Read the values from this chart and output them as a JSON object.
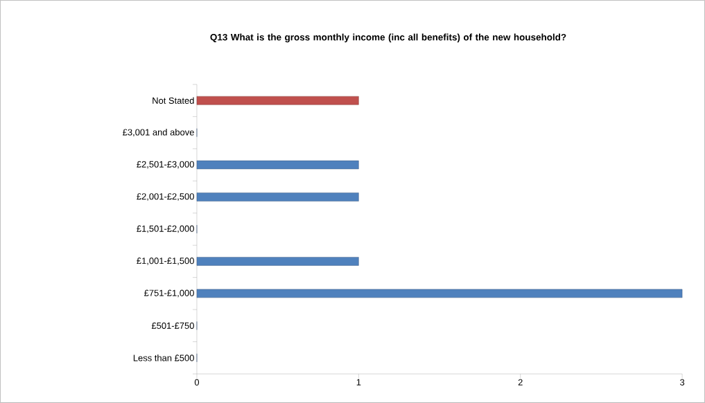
{
  "chart_data": {
    "type": "bar",
    "orientation": "horizontal",
    "title": "Q13 What is the gross monthly income (inc all benefits) of the new household?",
    "categories": [
      "Not Stated",
      "£3,001 and above",
      "£2,501-£3,000",
      "£2,001-£2,500",
      "£1,501-£2,000",
      "£1,001-£1,500",
      "£751-£1,000",
      "£501-£750",
      "Less than £500"
    ],
    "values": [
      1,
      0,
      1,
      1,
      0,
      1,
      3,
      0,
      0
    ],
    "colors": [
      "#c0504d",
      "#4f81bd",
      "#4f81bd",
      "#4f81bd",
      "#4f81bd",
      "#4f81bd",
      "#4f81bd",
      "#4f81bd",
      "#4f81bd"
    ],
    "xlim": [
      0,
      3
    ],
    "xticks": [
      0,
      1,
      2,
      3
    ]
  }
}
